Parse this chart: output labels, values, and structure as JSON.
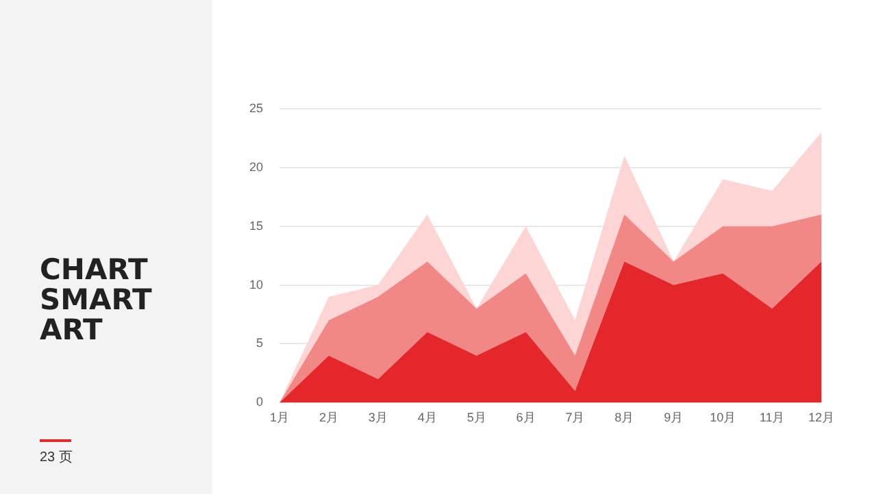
{
  "chart_data": {
    "type": "area",
    "title": "CHART SMART ART",
    "annotations": [
      "23 页"
    ],
    "categories": [
      "1月",
      "2月",
      "3月",
      "4月",
      "5月",
      "6月",
      "7月",
      "8月",
      "9月",
      "10月",
      "11月",
      "12月"
    ],
    "stacked": true,
    "series": [
      {
        "color": "#e4272a",
        "values": [
          0,
          4,
          2,
          6,
          4,
          6,
          1,
          12,
          10,
          11,
          8,
          12
        ]
      },
      {
        "color": "#f28886",
        "values": [
          0,
          3,
          7,
          6,
          4,
          5,
          3,
          4,
          2,
          4,
          7,
          4
        ]
      },
      {
        "color": "#fdd5d5",
        "values": [
          0,
          2,
          1,
          4,
          0,
          4,
          3,
          5,
          0,
          4,
          3,
          7
        ]
      }
    ],
    "ylim": [
      0,
      25
    ],
    "yticks": [
      0,
      5,
      10,
      15,
      20,
      25
    ],
    "grid": "y",
    "legend": false
  }
}
